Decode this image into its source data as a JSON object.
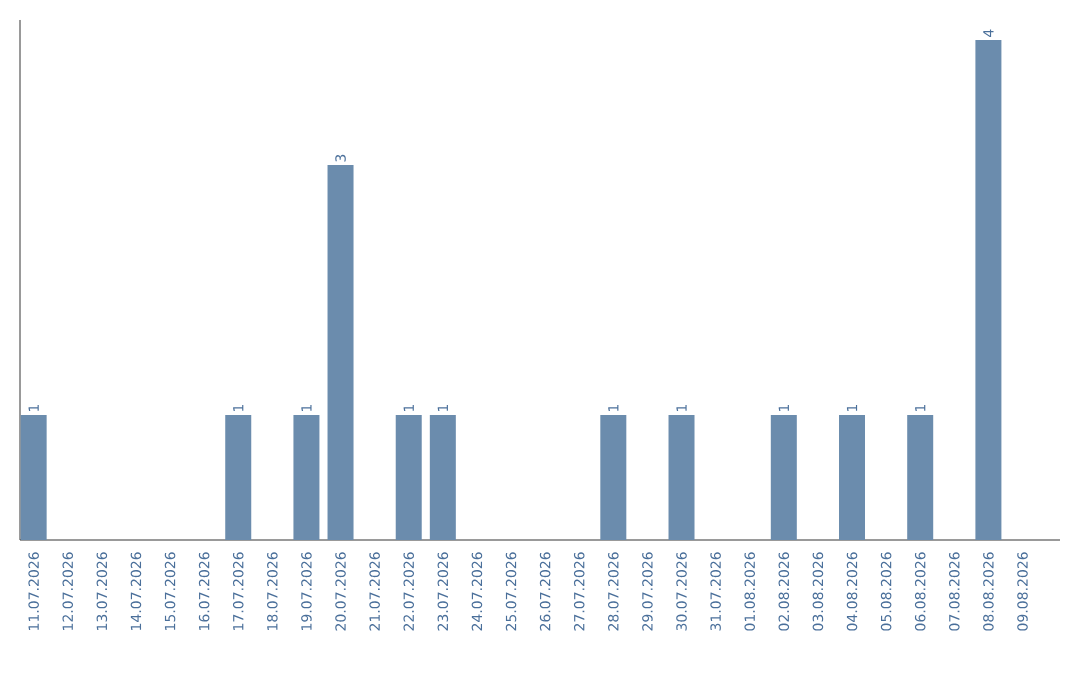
{
  "chart_data": {
    "type": "bar",
    "categories": [
      "11.07.2026",
      "12.07.2026",
      "13.07.2026",
      "14.07.2026",
      "15.07.2026",
      "16.07.2026",
      "17.07.2026",
      "18.07.2026",
      "19.07.2026",
      "20.07.2026",
      "21.07.2026",
      "22.07.2026",
      "23.07.2026",
      "24.07.2026",
      "25.07.2026",
      "26.07.2026",
      "27.07.2026",
      "28.07.2026",
      "29.07.2026",
      "30.07.2026",
      "31.07.2026",
      "01.08.2026",
      "02.08.2026",
      "03.08.2026",
      "04.08.2026",
      "05.08.2026",
      "06.08.2026",
      "07.08.2026",
      "08.08.2026",
      "09.08.2026"
    ],
    "values": [
      1,
      0,
      0,
      0,
      0,
      0,
      1,
      0,
      1,
      3,
      0,
      1,
      1,
      0,
      0,
      0,
      0,
      1,
      0,
      1,
      0,
      0,
      1,
      0,
      1,
      0,
      1,
      0,
      4,
      0
    ],
    "value_labels": [
      "1",
      null,
      null,
      null,
      null,
      null,
      "1",
      null,
      "1",
      "3",
      null,
      "1",
      "1",
      null,
      null,
      null,
      null,
      "1",
      null,
      "1",
      null,
      null,
      "1",
      null,
      "1",
      null,
      "1",
      null,
      "4",
      null
    ],
    "color": "#6b8cad"
  }
}
